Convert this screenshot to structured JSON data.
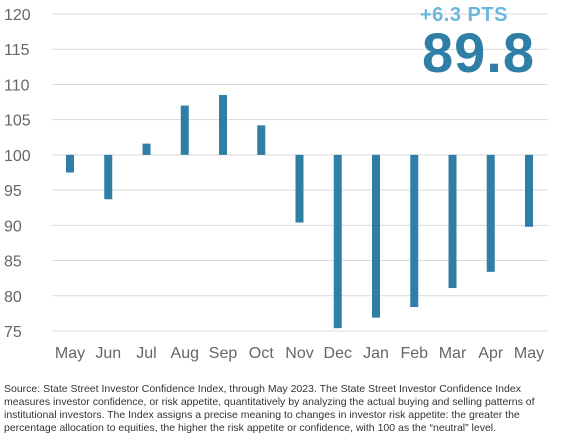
{
  "headline": {
    "change_label": "+6.3 PTS",
    "value": "89.8"
  },
  "chart_data": {
    "type": "bar",
    "baseline": 100,
    "categories": [
      "May",
      "Jun",
      "Jul",
      "Aug",
      "Sep",
      "Oct",
      "Nov",
      "Dec",
      "Jan",
      "Feb",
      "Mar",
      "Apr",
      "May"
    ],
    "values": [
      97.5,
      93.7,
      101.6,
      107.0,
      108.5,
      104.2,
      90.4,
      75.4,
      76.9,
      78.4,
      81.1,
      83.4,
      89.8
    ],
    "ylim": [
      75,
      120
    ],
    "yticks": [
      120,
      115,
      110,
      105,
      100,
      95,
      90,
      85,
      80,
      75
    ],
    "grid": true,
    "colors": {
      "bar": "#2f7ea6",
      "grid": "#d9d9d9",
      "tick": "#666666",
      "headline": "#2f7ea6",
      "change": "#6bb7e0"
    }
  },
  "footnote": "Source: State Street Investor Confidence Index, through May 2023. The State Street Investor Confidence Index measures investor confidence, or risk appetite, quantitatively by analyzing the actual buying and selling patterns of institutional investors. The Index assigns a precise meaning to changes in investor risk appetite: the greater the percentage allocation to equities, the higher the risk appetite or confidence, with 100 as the “neutral” level."
}
